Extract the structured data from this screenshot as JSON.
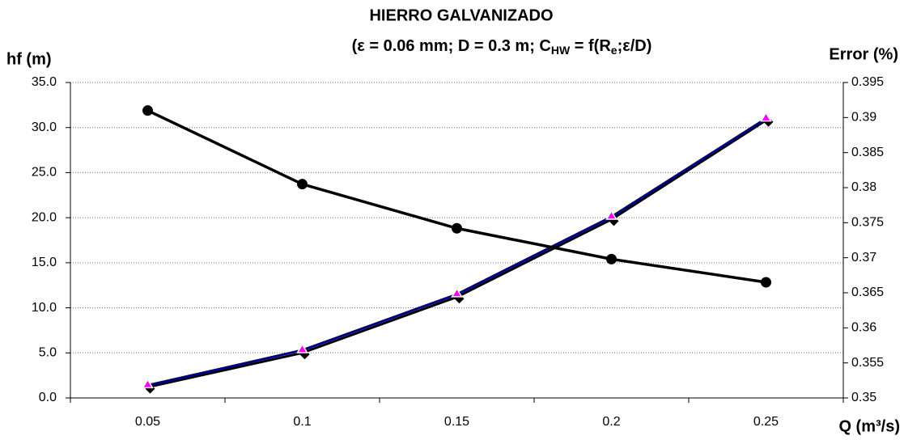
{
  "chart_data": {
    "type": "line",
    "title": "HIERRO GALVANIZADO",
    "subtitle": [
      "(ε = 0.06 mm; D = 0.3 m; C",
      "HW",
      " = f(R",
      "e",
      ";ε/D)"
    ],
    "y_label": "hf (m)",
    "y2_label": "Error (%)",
    "x_label": "Q (m³/s)",
    "categories": [
      "0.05",
      "0.1",
      "0.15",
      "0.2",
      "0.25"
    ],
    "series": [
      {
        "color": "#000000",
        "marker": "diamond",
        "values": [
          1.2,
          5.0,
          11.2,
          19.8,
          30.8
        ]
      },
      {
        "color": "#ff00ff",
        "line_color": "#000080",
        "marker": "triangle",
        "values": [
          1.4,
          5.3,
          11.5,
          20.1,
          31.0
        ]
      },
      {
        "color": "#000000",
        "marker": "circle",
        "axis": "y2",
        "values": [
          0.391,
          0.3805,
          0.3742,
          0.3698,
          0.3665
        ]
      }
    ],
    "ylim": [
      0,
      35
    ],
    "yticks": [
      {
        "value": 0,
        "label": "0.0"
      },
      {
        "value": 5,
        "label": "5.0"
      },
      {
        "value": 10,
        "label": "10.0"
      },
      {
        "value": 15,
        "label": "15.0"
      },
      {
        "value": 20,
        "label": "20.0"
      },
      {
        "value": 25,
        "label": "25.0"
      },
      {
        "value": 30,
        "label": "30.0"
      },
      {
        "value": 35,
        "label": "35.0"
      }
    ],
    "y2lim": [
      0.35,
      0.395
    ],
    "y2ticks": [
      0.35,
      0.355,
      0.36,
      0.365,
      0.37,
      0.375,
      0.38,
      0.385,
      0.39,
      0.395
    ],
    "grid": true
  }
}
